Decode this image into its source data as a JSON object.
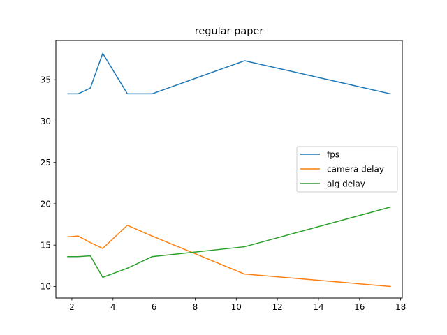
{
  "chart_data": {
    "type": "line",
    "title": "regular paper",
    "xlabel": "",
    "ylabel": "",
    "xlim": [
      1.22,
      18.08
    ],
    "ylim": [
      8.6,
      39.75
    ],
    "xticks": [
      2,
      4,
      6,
      8,
      10,
      12,
      14,
      16,
      18
    ],
    "yticks": [
      10,
      15,
      20,
      25,
      30,
      35
    ],
    "grid": false,
    "legend": {
      "placement": "center-right"
    },
    "series": [
      {
        "name": "fps",
        "color": "#1f77b4",
        "x": [
          1.8,
          2.3,
          2.9,
          3.5,
          4.7,
          5.9,
          10.4,
          17.5
        ],
        "y": [
          33.3,
          33.3,
          34.0,
          38.2,
          33.3,
          33.3,
          37.3,
          33.3
        ]
      },
      {
        "name": "camera delay",
        "color": "#ff7f0e",
        "x": [
          1.8,
          2.3,
          2.9,
          3.5,
          4.7,
          5.9,
          10.4,
          17.5
        ],
        "y": [
          16.0,
          16.1,
          15.3,
          14.6,
          17.4,
          16.1,
          11.5,
          10.0
        ]
      },
      {
        "name": "alg delay",
        "color": "#2ca02c",
        "x": [
          1.8,
          2.3,
          2.9,
          3.5,
          4.7,
          5.9,
          10.4,
          17.5
        ],
        "y": [
          13.6,
          13.6,
          13.7,
          11.1,
          12.2,
          13.6,
          14.8,
          19.6
        ]
      }
    ]
  }
}
